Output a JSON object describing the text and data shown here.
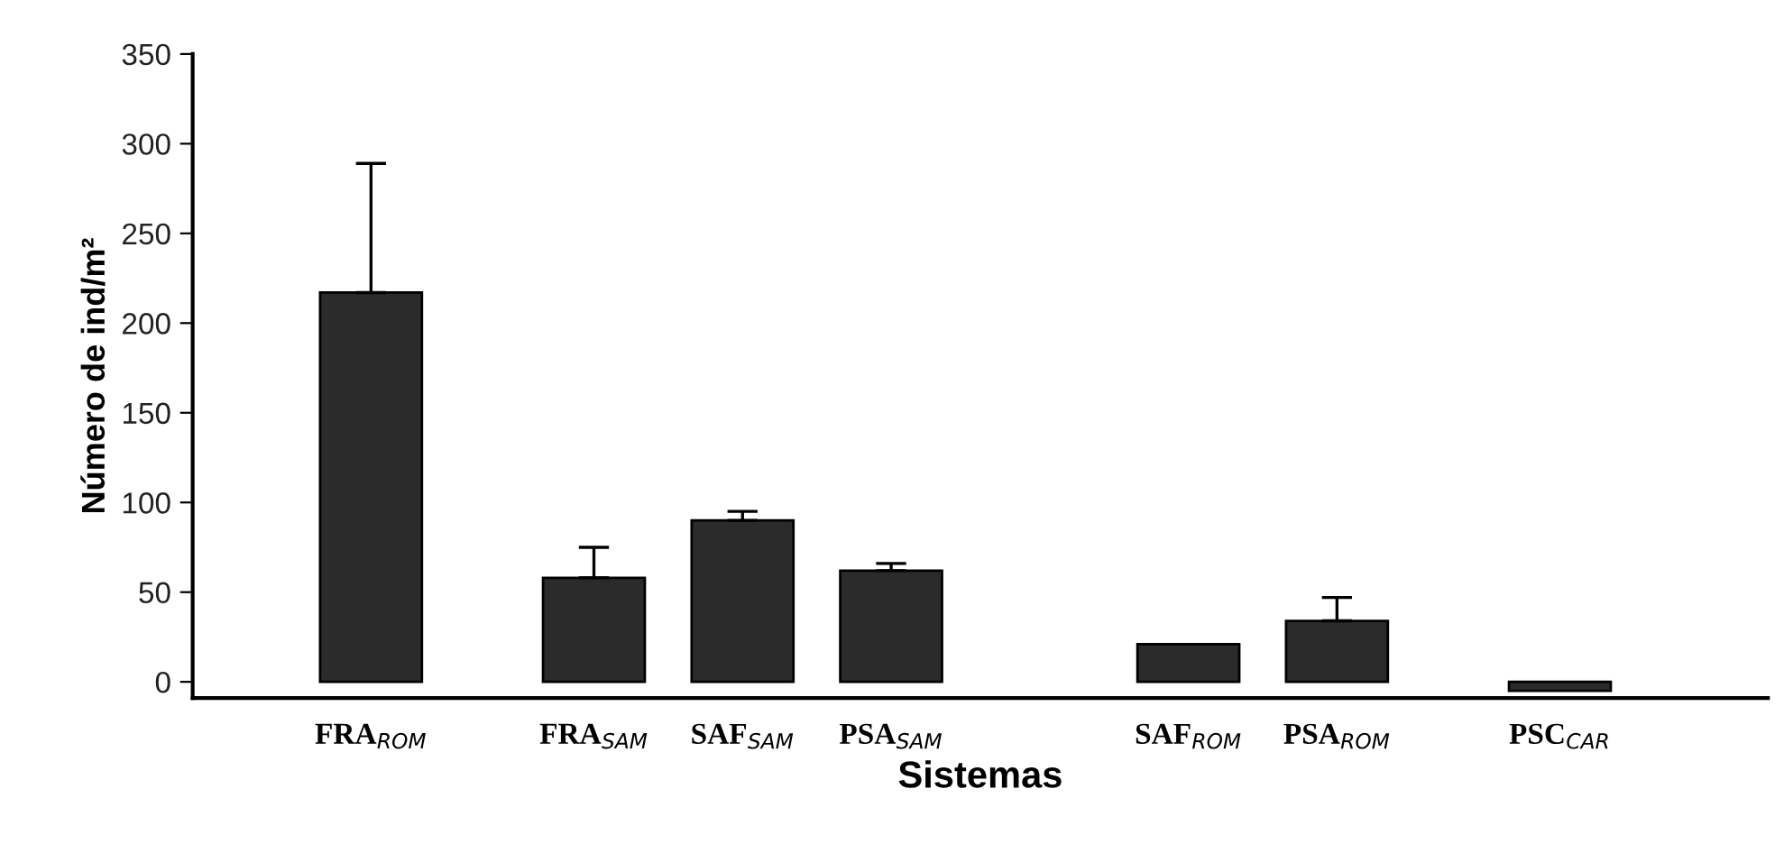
{
  "chart_data": {
    "type": "bar",
    "xlabel": "Sistemas",
    "ylabel": "Número de ind/m²",
    "categories": [
      "FRA$_{ROM}$",
      null,
      null,
      "FRA$_{SAM}$",
      null,
      "SAF$_{SAM}$",
      null,
      "PSA$_{SAM}$",
      null,
      null,
      null,
      "SAF$_{ROM}$",
      null,
      "PSA$_{ROM}$",
      null,
      null,
      "PSC$_{CAR}$"
    ],
    "values": [
      217,
      null,
      null,
      58,
      null,
      90,
      null,
      62,
      null,
      null,
      null,
      21,
      null,
      34,
      null,
      null,
      -5
    ],
    "errors": [
      [
        217,
        289
      ],
      null,
      null,
      [
        58,
        75
      ],
      null,
      [
        90,
        95
      ],
      null,
      [
        62,
        66
      ],
      null,
      null,
      null,
      null,
      null,
      [
        34,
        47
      ],
      null,
      null,
      null
    ],
    "color": "#2b2b2b",
    "ylim": [
      -9,
      350
    ],
    "yticks": [
      0,
      50,
      100,
      150,
      200,
      250,
      300,
      350
    ],
    "grid": false,
    "legend": false
  }
}
